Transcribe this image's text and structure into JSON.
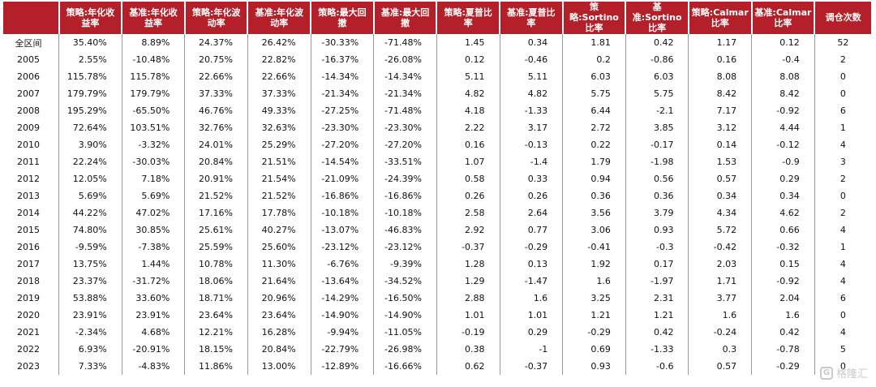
{
  "table": {
    "headers": [
      {
        "line1": "",
        "line2": ""
      },
      {
        "line1": "策略:年化收",
        "line2": "益率"
      },
      {
        "line1": "基准:年化收",
        "line2": "益率"
      },
      {
        "line1": "策略:年化波",
        "line2": "动率"
      },
      {
        "line1": "基准:年化波",
        "line2": "动率"
      },
      {
        "line1": "策略:最大回",
        "line2": "撤"
      },
      {
        "line1": "基准:最大回",
        "line2": "撤"
      },
      {
        "line1": "策略:夏普比",
        "line2": "率"
      },
      {
        "line1": "基准:夏普比",
        "line2": "率"
      },
      {
        "line1": "策略:Sortino",
        "line2": "比率"
      },
      {
        "line1": "基准:Sortino",
        "line2": "比率"
      },
      {
        "line1": "策略:Calmar",
        "line2": "比率"
      },
      {
        "line1": "基准:Calmar",
        "line2": "比率"
      },
      {
        "line1": "调仓次数",
        "line2": ""
      }
    ],
    "rows": [
      [
        "全区间",
        "35.40%",
        "8.89%",
        "24.37%",
        "26.42%",
        "-30.33%",
        "-71.48%",
        "1.45",
        "0.34",
        "1.81",
        "0.42",
        "1.17",
        "0.12",
        "52"
      ],
      [
        "2005",
        "2.55%",
        "-10.48%",
        "20.75%",
        "22.82%",
        "-16.37%",
        "-26.08%",
        "0.12",
        "-0.46",
        "0.2",
        "-0.86",
        "0.16",
        "-0.4",
        "2"
      ],
      [
        "2006",
        "115.78%",
        "115.78%",
        "22.66%",
        "22.66%",
        "-14.34%",
        "-14.34%",
        "5.11",
        "5.11",
        "6.03",
        "6.03",
        "8.08",
        "8.08",
        "0"
      ],
      [
        "2007",
        "179.79%",
        "179.79%",
        "37.33%",
        "37.33%",
        "-21.34%",
        "-21.34%",
        "4.82",
        "4.82",
        "5.75",
        "5.75",
        "8.42",
        "8.42",
        "0"
      ],
      [
        "2008",
        "195.29%",
        "-65.50%",
        "46.76%",
        "49.33%",
        "-27.25%",
        "-71.48%",
        "4.18",
        "-1.33",
        "6.44",
        "-2.1",
        "7.17",
        "-0.92",
        "6"
      ],
      [
        "2009",
        "72.64%",
        "103.51%",
        "32.76%",
        "32.63%",
        "-23.30%",
        "-23.30%",
        "2.22",
        "3.17",
        "2.72",
        "3.85",
        "3.12",
        "4.44",
        "1"
      ],
      [
        "2010",
        "3.90%",
        "-3.32%",
        "24.01%",
        "25.29%",
        "-27.20%",
        "-27.20%",
        "0.16",
        "-0.13",
        "0.22",
        "-0.17",
        "0.14",
        "-0.12",
        "4"
      ],
      [
        "2011",
        "22.24%",
        "-30.03%",
        "20.84%",
        "21.51%",
        "-14.54%",
        "-33.51%",
        "1.07",
        "-1.4",
        "1.79",
        "-1.98",
        "1.53",
        "-0.9",
        "3"
      ],
      [
        "2012",
        "12.05%",
        "7.18%",
        "20.91%",
        "21.54%",
        "-21.09%",
        "-24.39%",
        "0.58",
        "0.33",
        "0.94",
        "0.56",
        "0.57",
        "0.29",
        "2"
      ],
      [
        "2013",
        "5.69%",
        "5.69%",
        "21.52%",
        "21.52%",
        "-16.86%",
        "-16.86%",
        "0.26",
        "0.26",
        "0.36",
        "0.36",
        "0.34",
        "0.34",
        "0"
      ],
      [
        "2014",
        "44.22%",
        "47.02%",
        "17.16%",
        "17.78%",
        "-10.18%",
        "-10.18%",
        "2.58",
        "2.64",
        "3.56",
        "3.79",
        "4.34",
        "4.62",
        "2"
      ],
      [
        "2015",
        "74.80%",
        "30.85%",
        "25.61%",
        "40.27%",
        "-13.07%",
        "-46.83%",
        "2.92",
        "0.77",
        "3.06",
        "0.93",
        "5.72",
        "0.66",
        "4"
      ],
      [
        "2016",
        "-9.59%",
        "-7.38%",
        "25.59%",
        "25.60%",
        "-23.12%",
        "-23.12%",
        "-0.37",
        "-0.29",
        "-0.41",
        "-0.3",
        "-0.42",
        "-0.32",
        "1"
      ],
      [
        "2017",
        "13.75%",
        "1.44%",
        "10.78%",
        "11.30%",
        "-6.76%",
        "-9.39%",
        "1.28",
        "0.13",
        "1.92",
        "0.17",
        "2.03",
        "0.15",
        "4"
      ],
      [
        "2018",
        "23.37%",
        "-31.72%",
        "18.06%",
        "21.64%",
        "-13.64%",
        "-34.52%",
        "1.29",
        "-1.47",
        "1.6",
        "-1.97",
        "1.71",
        "-0.92",
        "4"
      ],
      [
        "2019",
        "53.88%",
        "33.60%",
        "18.71%",
        "20.96%",
        "-14.29%",
        "-16.50%",
        "2.88",
        "1.6",
        "3.25",
        "2.31",
        "3.77",
        "2.04",
        "6"
      ],
      [
        "2020",
        "23.91%",
        "23.91%",
        "23.64%",
        "23.64%",
        "-14.90%",
        "-14.90%",
        "1.01",
        "1.01",
        "1.21",
        "1.21",
        "1.6",
        "1.6",
        "0"
      ],
      [
        "2021",
        "-2.34%",
        "4.68%",
        "12.21%",
        "16.28%",
        "-9.94%",
        "-11.05%",
        "-0.19",
        "0.29",
        "-0.29",
        "0.42",
        "-0.24",
        "0.42",
        "4"
      ],
      [
        "2022",
        "6.93%",
        "-20.91%",
        "18.15%",
        "20.84%",
        "-22.79%",
        "-26.98%",
        "0.38",
        "-1",
        "0.69",
        "-1.33",
        "0.3",
        "-0.78",
        "5"
      ],
      [
        "2023",
        "7.33%",
        "-4.83%",
        "11.86%",
        "13.00%",
        "-12.89%",
        "-16.66%",
        "0.62",
        "-0.37",
        "0.93",
        "-0.6",
        "0.57",
        "-0.29",
        "0"
      ]
    ]
  },
  "watermark": {
    "icon": "gelonghui-logo-icon",
    "logo_glyph": "G",
    "text": "格隆汇"
  }
}
